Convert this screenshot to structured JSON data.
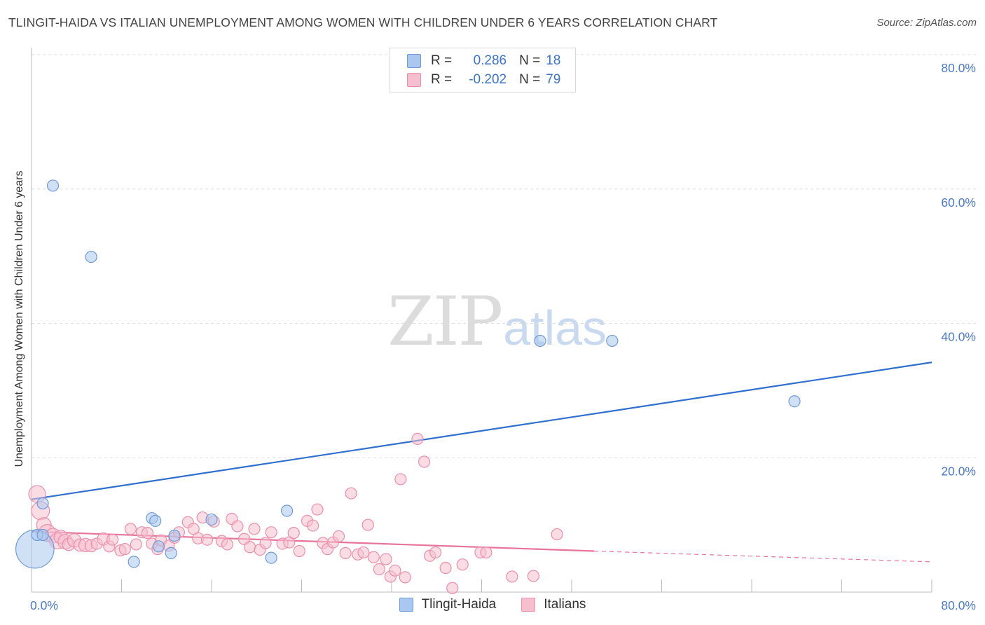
{
  "title": "TLINGIT-HAIDA VS ITALIAN UNEMPLOYMENT AMONG WOMEN WITH CHILDREN UNDER 6 YEARS CORRELATION CHART",
  "source": "Source: ZipAtlas.com",
  "watermark": {
    "zip": "ZIP",
    "atlas": "atlas"
  },
  "legend": {
    "tlingit": {
      "r_label": "R =",
      "r_value": "0.286",
      "n_label": "N =",
      "n_value": "18"
    },
    "italians": {
      "r_label": "R =",
      "r_value": "-0.202",
      "n_label": "N =",
      "n_value": "79"
    }
  },
  "bottom_legend": {
    "tlingit": "Tlingit-Haida",
    "italians": "Italians"
  },
  "colors": {
    "tlingit_fill": "#aac8ef",
    "tlingit_stroke": "#6f9ad6",
    "tlingit_line": "#2f6fcf",
    "italians_fill": "#f6bfd0",
    "italians_stroke": "#ec8fad",
    "italians_line": "#e8739b",
    "grid": "#dddddd",
    "tick_text": "#4a7ac8"
  },
  "chart_data": {
    "type": "scatter",
    "title": "TLINGIT-HAIDA VS ITALIAN UNEMPLOYMENT AMONG WOMEN WITH CHILDREN UNDER 6 YEARS CORRELATION CHART",
    "xlabel": "",
    "ylabel": "Unemployment Among Women with Children Under 6 years",
    "xlim": [
      0,
      80
    ],
    "ylim": [
      0,
      80
    ],
    "x_tick_labels": [
      "0.0%",
      "80.0%"
    ],
    "y_ticks": [
      20,
      40,
      60,
      80
    ],
    "y_tick_labels": [
      "20.0%",
      "40.0%",
      "60.0%",
      "80.0%"
    ],
    "grid": true,
    "series": [
      {
        "name": "Tlingit-Haida",
        "points": [
          {
            "x": 0.3,
            "y": 6.4,
            "s": 3.4
          },
          {
            "x": 0.5,
            "y": 8.5,
            "s": 1
          },
          {
            "x": 1.0,
            "y": 8.5,
            "s": 1
          },
          {
            "x": 1.0,
            "y": 13.2,
            "s": 1
          },
          {
            "x": 1.9,
            "y": 60.5,
            "s": 1
          },
          {
            "x": 5.3,
            "y": 49.9,
            "s": 1
          },
          {
            "x": 9.1,
            "y": 4.5,
            "s": 1
          },
          {
            "x": 10.7,
            "y": 11.0,
            "s": 1
          },
          {
            "x": 11.0,
            "y": 10.6,
            "s": 1
          },
          {
            "x": 11.3,
            "y": 6.8,
            "s": 1
          },
          {
            "x": 12.4,
            "y": 5.8,
            "s": 1
          },
          {
            "x": 12.7,
            "y": 8.4,
            "s": 1
          },
          {
            "x": 16.0,
            "y": 10.8,
            "s": 1
          },
          {
            "x": 21.3,
            "y": 5.1,
            "s": 1
          },
          {
            "x": 22.7,
            "y": 12.1,
            "s": 1
          },
          {
            "x": 45.2,
            "y": 37.4,
            "s": 1
          },
          {
            "x": 51.6,
            "y": 37.4,
            "s": 1
          },
          {
            "x": 67.8,
            "y": 28.4,
            "s": 1
          }
        ],
        "trend": {
          "x0": 0,
          "y0": 13.8,
          "x1": 80,
          "y1": 34.2
        }
      },
      {
        "name": "Italians",
        "points": [
          {
            "x": 0.5,
            "y": 14.6,
            "s": 1.5
          },
          {
            "x": 0.8,
            "y": 12.1,
            "s": 1.6
          },
          {
            "x": 1.1,
            "y": 10.0,
            "s": 1.3
          },
          {
            "x": 1.4,
            "y": 8.8,
            "s": 1.5
          },
          {
            "x": 1.9,
            "y": 8.4,
            "s": 1.3
          },
          {
            "x": 2.3,
            "y": 7.6,
            "s": 1.4
          },
          {
            "x": 2.6,
            "y": 8.2,
            "s": 1.2
          },
          {
            "x": 3.0,
            "y": 7.5,
            "s": 1.3
          },
          {
            "x": 3.3,
            "y": 7.1,
            "s": 1.1
          },
          {
            "x": 3.8,
            "y": 7.7,
            "s": 1.2
          },
          {
            "x": 4.3,
            "y": 7.0,
            "s": 1.1
          },
          {
            "x": 4.8,
            "y": 7.0,
            "s": 1.2
          },
          {
            "x": 5.3,
            "y": 6.9,
            "s": 1.1
          },
          {
            "x": 5.8,
            "y": 7.2,
            "s": 1
          },
          {
            "x": 6.4,
            "y": 7.9,
            "s": 1.1
          },
          {
            "x": 6.9,
            "y": 6.8,
            "s": 1
          },
          {
            "x": 7.2,
            "y": 7.8,
            "s": 1
          },
          {
            "x": 7.9,
            "y": 6.2,
            "s": 1
          },
          {
            "x": 8.3,
            "y": 6.4,
            "s": 1
          },
          {
            "x": 8.8,
            "y": 9.4,
            "s": 1
          },
          {
            "x": 9.3,
            "y": 7.1,
            "s": 1
          },
          {
            "x": 9.8,
            "y": 8.9,
            "s": 1
          },
          {
            "x": 10.3,
            "y": 8.8,
            "s": 1
          },
          {
            "x": 10.7,
            "y": 7.2,
            "s": 1
          },
          {
            "x": 11.2,
            "y": 6.4,
            "s": 1
          },
          {
            "x": 11.5,
            "y": 7.7,
            "s": 1
          },
          {
            "x": 12.2,
            "y": 6.9,
            "s": 1
          },
          {
            "x": 12.7,
            "y": 8.1,
            "s": 1
          },
          {
            "x": 13.1,
            "y": 8.9,
            "s": 1
          },
          {
            "x": 13.9,
            "y": 10.4,
            "s": 1
          },
          {
            "x": 14.4,
            "y": 9.4,
            "s": 1
          },
          {
            "x": 14.8,
            "y": 8.0,
            "s": 1
          },
          {
            "x": 15.2,
            "y": 11.1,
            "s": 1
          },
          {
            "x": 15.6,
            "y": 7.8,
            "s": 1
          },
          {
            "x": 16.2,
            "y": 10.5,
            "s": 1
          },
          {
            "x": 16.9,
            "y": 7.6,
            "s": 1
          },
          {
            "x": 17.4,
            "y": 7.1,
            "s": 1
          },
          {
            "x": 17.8,
            "y": 10.9,
            "s": 1
          },
          {
            "x": 18.3,
            "y": 9.8,
            "s": 1
          },
          {
            "x": 18.9,
            "y": 7.9,
            "s": 1
          },
          {
            "x": 19.4,
            "y": 6.7,
            "s": 1
          },
          {
            "x": 19.8,
            "y": 9.4,
            "s": 1
          },
          {
            "x": 20.3,
            "y": 6.3,
            "s": 1
          },
          {
            "x": 20.8,
            "y": 7.3,
            "s": 1
          },
          {
            "x": 21.3,
            "y": 8.9,
            "s": 1
          },
          {
            "x": 22.3,
            "y": 7.2,
            "s": 1
          },
          {
            "x": 22.9,
            "y": 7.4,
            "s": 1
          },
          {
            "x": 23.3,
            "y": 8.8,
            "s": 1
          },
          {
            "x": 23.8,
            "y": 6.1,
            "s": 1
          },
          {
            "x": 24.5,
            "y": 10.6,
            "s": 1
          },
          {
            "x": 25.0,
            "y": 9.9,
            "s": 1
          },
          {
            "x": 25.4,
            "y": 12.3,
            "s": 1
          },
          {
            "x": 25.9,
            "y": 7.3,
            "s": 1
          },
          {
            "x": 26.3,
            "y": 6.4,
            "s": 1
          },
          {
            "x": 26.8,
            "y": 7.4,
            "s": 1
          },
          {
            "x": 27.3,
            "y": 8.3,
            "s": 1
          },
          {
            "x": 27.9,
            "y": 5.8,
            "s": 1
          },
          {
            "x": 28.4,
            "y": 14.7,
            "s": 1
          },
          {
            "x": 29.0,
            "y": 5.6,
            "s": 1
          },
          {
            "x": 29.5,
            "y": 5.9,
            "s": 1
          },
          {
            "x": 29.9,
            "y": 10.0,
            "s": 1
          },
          {
            "x": 30.4,
            "y": 5.2,
            "s": 1
          },
          {
            "x": 30.9,
            "y": 3.4,
            "s": 1
          },
          {
            "x": 31.5,
            "y": 4.9,
            "s": 1
          },
          {
            "x": 31.9,
            "y": 2.3,
            "s": 1
          },
          {
            "x": 32.3,
            "y": 3.2,
            "s": 1
          },
          {
            "x": 32.8,
            "y": 16.8,
            "s": 1
          },
          {
            "x": 33.2,
            "y": 2.2,
            "s": 1
          },
          {
            "x": 34.3,
            "y": 22.8,
            "s": 1
          },
          {
            "x": 34.9,
            "y": 19.4,
            "s": 1
          },
          {
            "x": 35.4,
            "y": 5.4,
            "s": 1
          },
          {
            "x": 35.9,
            "y": 5.9,
            "s": 1
          },
          {
            "x": 36.8,
            "y": 3.6,
            "s": 1
          },
          {
            "x": 37.4,
            "y": 0.6,
            "s": 1
          },
          {
            "x": 38.3,
            "y": 4.1,
            "s": 1
          },
          {
            "x": 39.9,
            "y": 5.9,
            "s": 1
          },
          {
            "x": 40.4,
            "y": 5.9,
            "s": 1
          },
          {
            "x": 42.7,
            "y": 2.3,
            "s": 1
          },
          {
            "x": 44.6,
            "y": 2.4,
            "s": 1
          },
          {
            "x": 46.7,
            "y": 8.6,
            "s": 1
          }
        ],
        "trend": {
          "x0": 0,
          "y0": 9.0,
          "x1": 50,
          "y1": 6.1,
          "dash_to_x": 80,
          "dash_to_y": 4.5
        }
      }
    ]
  }
}
